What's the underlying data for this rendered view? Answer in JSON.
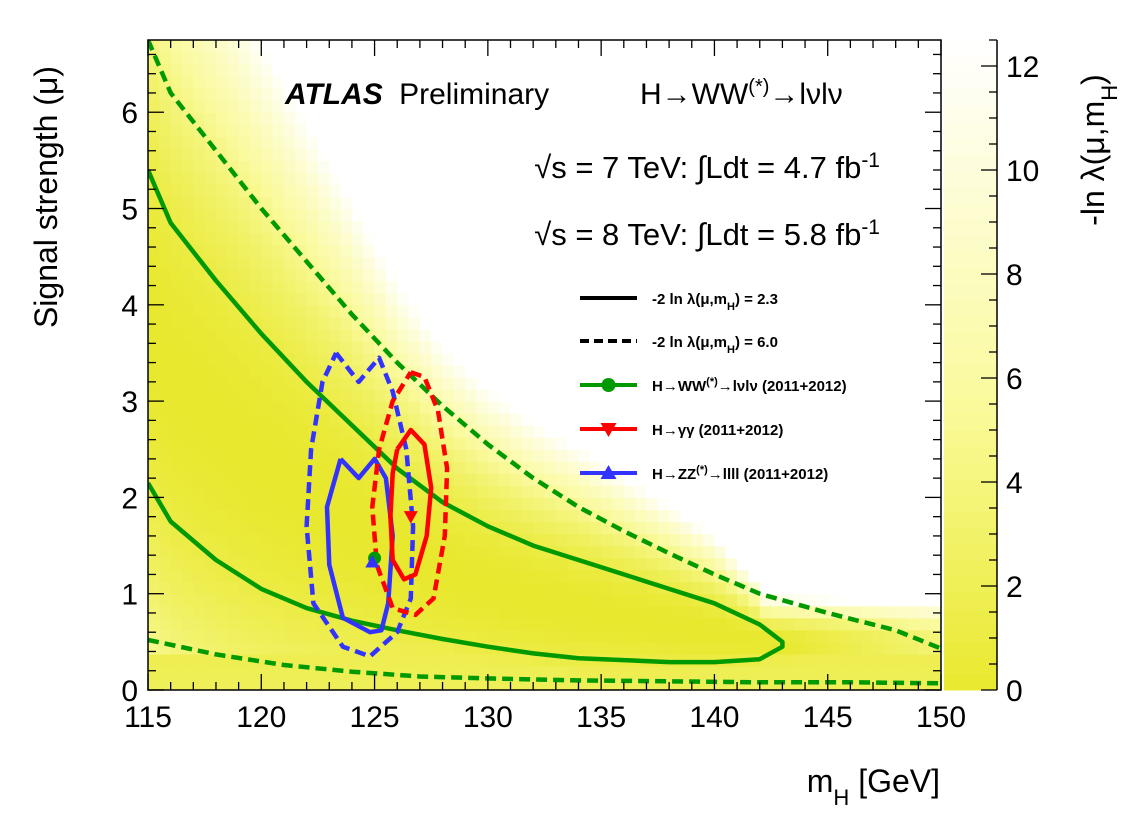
{
  "chart_data": {
    "type": "heatmap",
    "title": "",
    "experiment": {
      "name": "ATLAS",
      "status": "Preliminary",
      "channel": "H→WW(*)→lνlν"
    },
    "luminosity": [
      {
        "text": "√s = 7 TeV: ∫Ldt = 4.7 fb⁻¹"
      },
      {
        "text": "√s = 8 TeV: ∫Ldt = 5.8 fb⁻¹"
      }
    ],
    "xlabel": "m_H [GeV]",
    "ylabel": "Signal strength (μ)",
    "zlabel": "-ln λ(μ,m_H)",
    "xlim": [
      115,
      150
    ],
    "ylim": [
      0,
      6.75
    ],
    "zlim": [
      0,
      12.5
    ],
    "xticks": [
      "115",
      "120",
      "125",
      "130",
      "135",
      "140",
      "145",
      "150"
    ],
    "yticks": [
      "0",
      "1",
      "2",
      "3",
      "4",
      "5",
      "6"
    ],
    "zticks": [
      "0",
      "2",
      "4",
      "6",
      "8",
      "10",
      "12"
    ],
    "colormap": {
      "low": "#e8e82e",
      "mid": "#fafa9e",
      "high": "#ffffff"
    },
    "legend": {
      "placement": "right-middle",
      "entries": [
        {
          "label": "-2 ln λ(μ,m_H) = 2.3",
          "style": "solid",
          "color": "#000000"
        },
        {
          "label": "-2 ln λ(μ,m_H) = 6.0",
          "style": "dashed",
          "color": "#000000"
        },
        {
          "label": "H→WW(*)→lνlν (2011+2012)",
          "marker": "circle",
          "color": "#009900"
        },
        {
          "label": "H→γγ (2011+2012)",
          "marker": "triangle-down",
          "color": "#ff0000"
        },
        {
          "label": "H→ZZ(*)→llll (2011+2012)",
          "marker": "triangle-up",
          "color": "#3333ff"
        }
      ]
    },
    "series": [
      {
        "name": "H→WW(*)→lνlν (2011+2012)",
        "color": "#009900",
        "best_fit": [
          125,
          1.37
        ],
        "contour_2p3_upper": [
          [
            115,
            5.4
          ],
          [
            116,
            4.85
          ],
          [
            118,
            4.25
          ],
          [
            120,
            3.7
          ],
          [
            122,
            3.2
          ],
          [
            124,
            2.75
          ],
          [
            126,
            2.3
          ],
          [
            128,
            1.95
          ],
          [
            130,
            1.7
          ],
          [
            132,
            1.5
          ],
          [
            134,
            1.35
          ],
          [
            136,
            1.2
          ],
          [
            138,
            1.05
          ],
          [
            140,
            0.9
          ],
          [
            142,
            0.68
          ],
          [
            143,
            0.5
          ]
        ],
        "contour_2p3_lower": [
          [
            115,
            2.15
          ],
          [
            116,
            1.75
          ],
          [
            118,
            1.35
          ],
          [
            120,
            1.05
          ],
          [
            122,
            0.85
          ],
          [
            124,
            0.72
          ],
          [
            126,
            0.62
          ],
          [
            128,
            0.53
          ],
          [
            130,
            0.45
          ],
          [
            132,
            0.38
          ],
          [
            134,
            0.33
          ],
          [
            136,
            0.31
          ],
          [
            138,
            0.29
          ],
          [
            140,
            0.29
          ],
          [
            142,
            0.32
          ],
          [
            143,
            0.45
          ]
        ],
        "contour_6p0_upper": [
          [
            115,
            6.75
          ],
          [
            116,
            6.2
          ],
          [
            118,
            5.6
          ],
          [
            120,
            5.0
          ],
          [
            122,
            4.45
          ],
          [
            124,
            3.9
          ],
          [
            126,
            3.4
          ],
          [
            128,
            2.95
          ],
          [
            130,
            2.55
          ],
          [
            132,
            2.2
          ],
          [
            134,
            1.9
          ],
          [
            136,
            1.65
          ],
          [
            138,
            1.42
          ],
          [
            140,
            1.2
          ],
          [
            142,
            1.0
          ],
          [
            145,
            0.8
          ],
          [
            148,
            0.62
          ],
          [
            150,
            0.43
          ]
        ],
        "contour_6p0_lower": [
          [
            115,
            0.52
          ],
          [
            118,
            0.37
          ],
          [
            121,
            0.26
          ],
          [
            124,
            0.19
          ],
          [
            127,
            0.14
          ],
          [
            130,
            0.12
          ],
          [
            134,
            0.1
          ],
          [
            138,
            0.09
          ],
          [
            142,
            0.08
          ],
          [
            146,
            0.08
          ],
          [
            150,
            0.07
          ]
        ]
      },
      {
        "name": "H→γγ (2011+2012)",
        "color": "#ff0000",
        "best_fit": [
          126.6,
          1.8
        ],
        "contour_2p3": [
          [
            126,
            2.5
          ],
          [
            126.6,
            2.7
          ],
          [
            127.2,
            2.55
          ],
          [
            127.5,
            2.1
          ],
          [
            127.3,
            1.6
          ],
          [
            126.8,
            1.2
          ],
          [
            126.3,
            1.15
          ],
          [
            125.8,
            1.35
          ],
          [
            125.7,
            1.8
          ],
          [
            125.8,
            2.25
          ],
          [
            126,
            2.5
          ]
        ],
        "contour_6p0": [
          [
            126.6,
            3.3
          ],
          [
            127.2,
            3.25
          ],
          [
            127.8,
            2.9
          ],
          [
            128.2,
            2.3
          ],
          [
            128.1,
            1.6
          ],
          [
            127.6,
            0.95
          ],
          [
            126.8,
            0.78
          ],
          [
            125.8,
            0.85
          ],
          [
            125.1,
            1.3
          ],
          [
            124.9,
            1.9
          ],
          [
            125.2,
            2.5
          ],
          [
            125.8,
            3.0
          ],
          [
            126.6,
            3.3
          ]
        ]
      },
      {
        "name": "H→ZZ(*)→llll (2011+2012)",
        "color": "#3333ff",
        "best_fit": [
          124.9,
          1.33
        ],
        "contour_2p3": [
          [
            123.5,
            2.4
          ],
          [
            124.3,
            2.2
          ],
          [
            125,
            2.4
          ],
          [
            125.5,
            2.2
          ],
          [
            125.8,
            1.6
          ],
          [
            125.6,
            0.9
          ],
          [
            125.3,
            0.62
          ],
          [
            124.8,
            0.6
          ],
          [
            123.6,
            0.75
          ],
          [
            123,
            1.3
          ],
          [
            122.9,
            1.9
          ],
          [
            123.5,
            2.4
          ]
        ],
        "contour_6p0": [
          [
            123.3,
            3.5
          ],
          [
            124.3,
            3.2
          ],
          [
            125.2,
            3.45
          ],
          [
            125.8,
            3.1
          ],
          [
            126.4,
            2.5
          ],
          [
            126.7,
            1.7
          ],
          [
            126.6,
            0.95
          ],
          [
            126,
            0.6
          ],
          [
            124.8,
            0.35
          ],
          [
            123.6,
            0.45
          ],
          [
            122.3,
            0.9
          ],
          [
            122,
            1.7
          ],
          [
            122.2,
            2.5
          ],
          [
            122.7,
            3.2
          ],
          [
            123.3,
            3.5
          ]
        ]
      }
    ]
  }
}
